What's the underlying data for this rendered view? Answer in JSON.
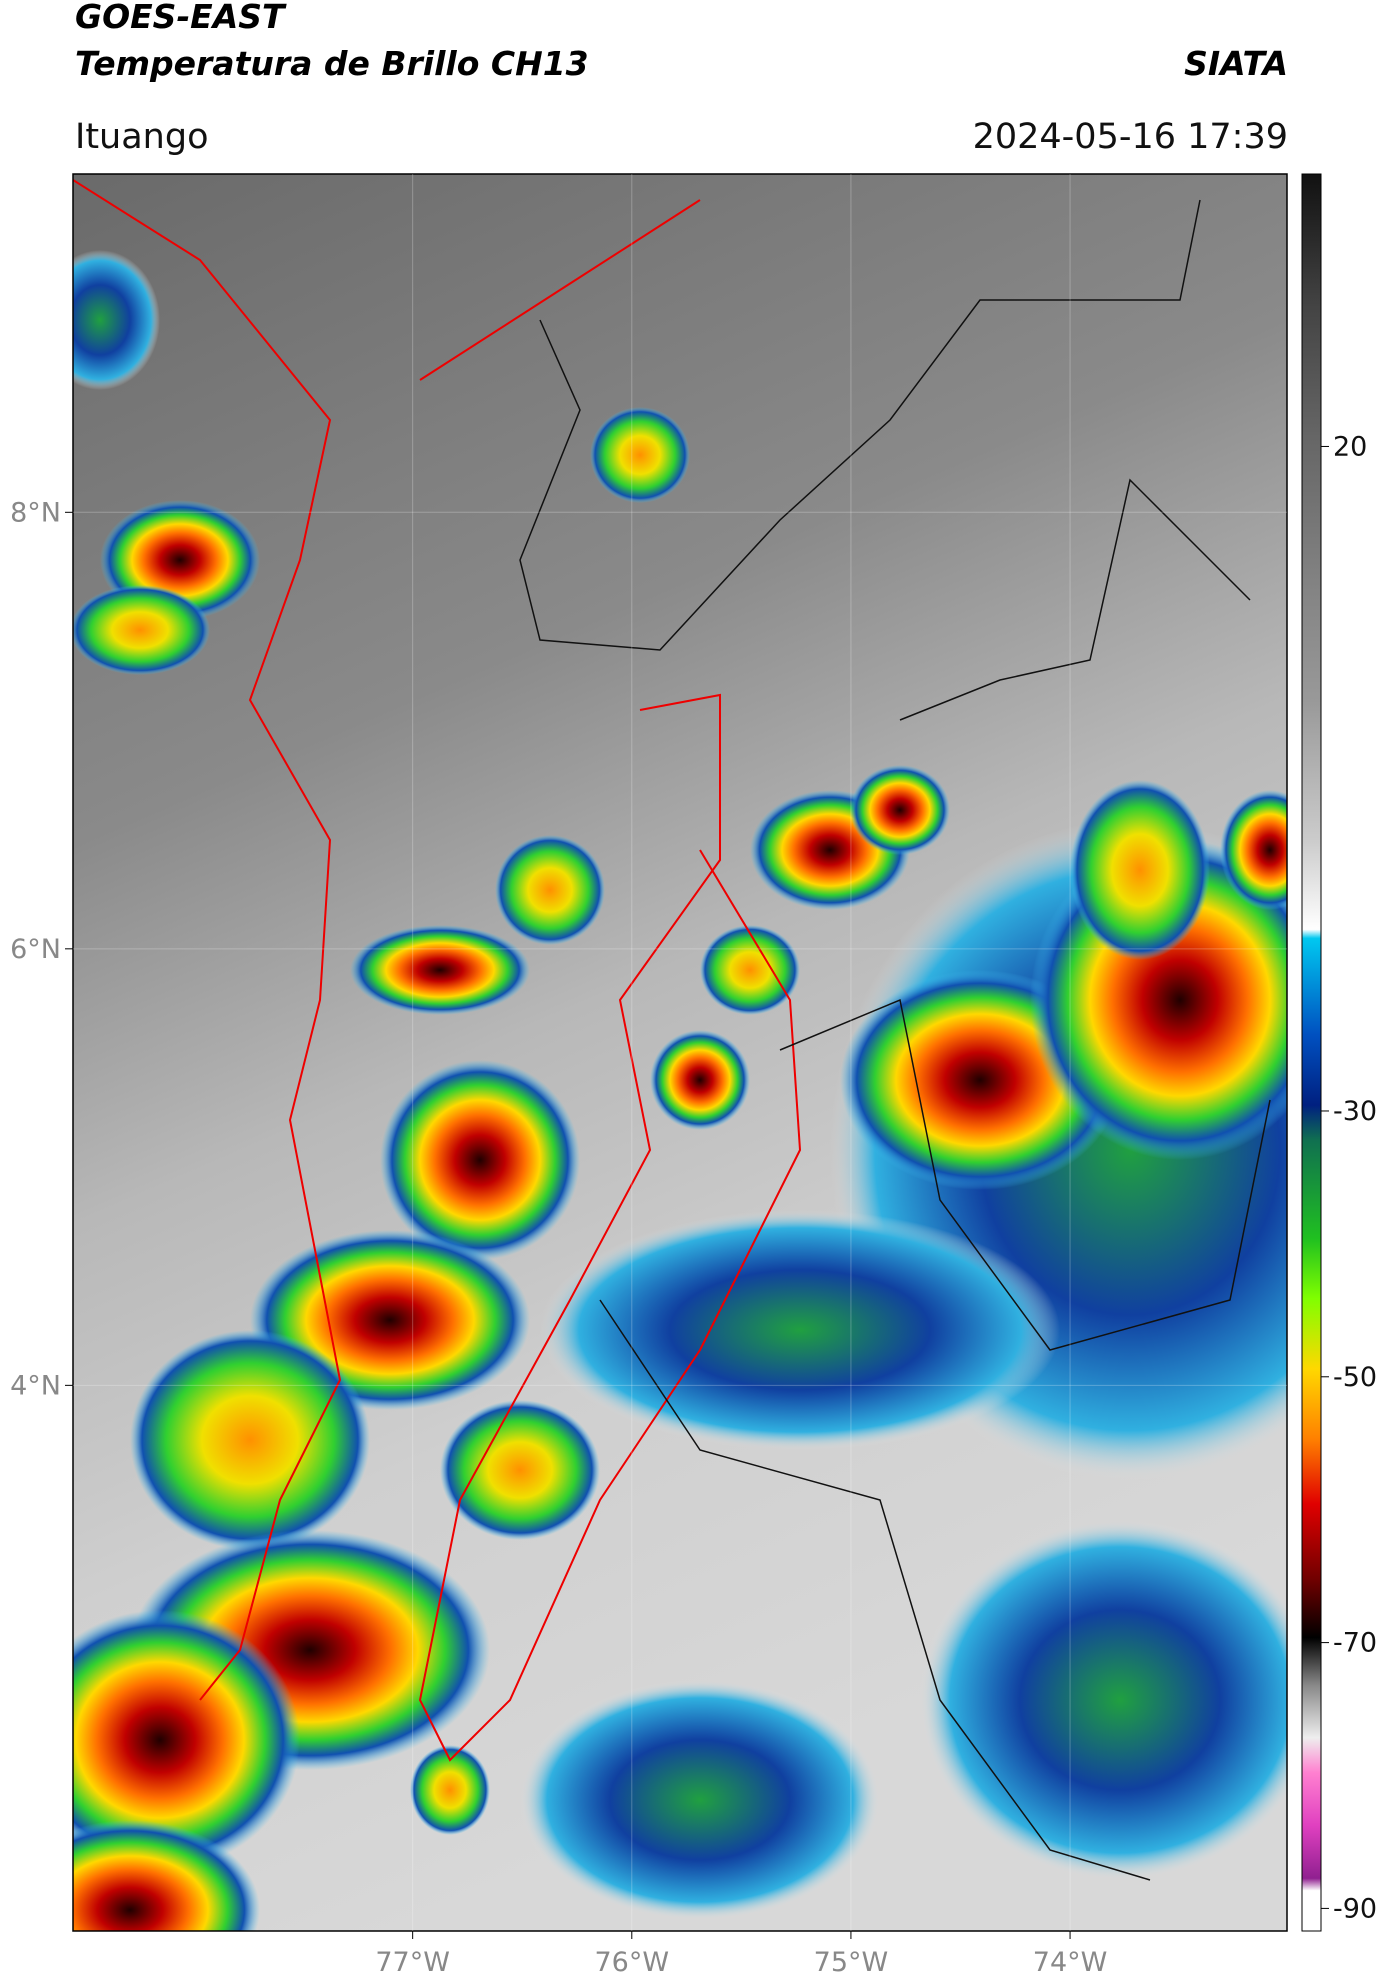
{
  "header": {
    "satellite": "GOES-EAST",
    "product": "Temperatura de Brillo CH13",
    "agency": "SIATA",
    "location": "Ituango",
    "datetime": "2024-05-16 17:39"
  },
  "map": {
    "xlim": [
      -78.55,
      -73.01
    ],
    "ylim": [
      1.5,
      9.55
    ],
    "xticks": [
      {
        "value": -77,
        "label": "77°W"
      },
      {
        "value": -76,
        "label": "76°W"
      },
      {
        "value": -75,
        "label": "75°W"
      },
      {
        "value": -74,
        "label": "74°W"
      }
    ],
    "yticks": [
      {
        "value": 8,
        "label": "8°N"
      },
      {
        "value": 6,
        "label": "6°N"
      },
      {
        "value": 4,
        "label": "4°N"
      }
    ]
  },
  "colorbar": {
    "lim": [
      -91.7,
      40.5
    ],
    "ticks": [
      20,
      -30,
      -50,
      -70,
      -90
    ]
  }
}
